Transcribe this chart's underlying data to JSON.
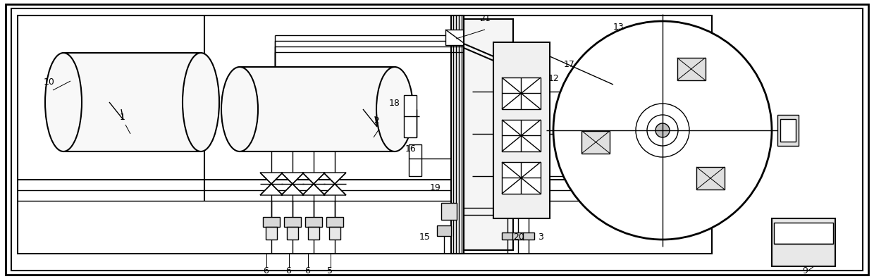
{
  "bg_color": "#ffffff",
  "line_color": "#000000",
  "fig_width": 12.4,
  "fig_height": 3.96,
  "dpi": 100
}
